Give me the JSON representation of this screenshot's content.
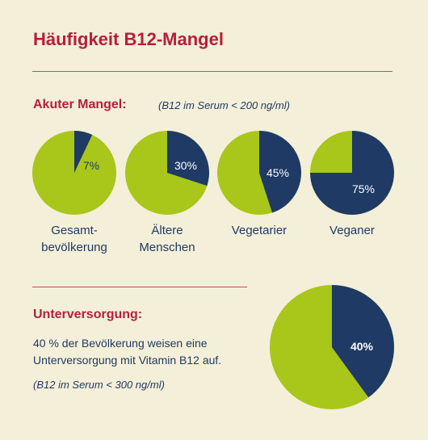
{
  "title": "Häufigkeit B12-Mangel",
  "colors": {
    "accent": "#b51f3b",
    "navy": "#1f3a64",
    "lime": "#a9c61a",
    "background": "#f4efd9"
  },
  "acute": {
    "heading": "Akuter Mangel:",
    "note": "(B12 im Serum < 200 ng/ml)"
  },
  "undersupply": {
    "heading": "Unterversorgung:",
    "description": "40 % der Bevölkerung weisen eine Unterversorgung mit Vitamin B12 auf.",
    "note": "(B12 im Serum < 300 ng/ml)"
  },
  "chart_data": [
    {
      "type": "pie",
      "category": "Gesamt-\nbevölkerung",
      "value": 7,
      "label": "7%"
    },
    {
      "type": "pie",
      "category": "Ältere\nMenschen",
      "value": 30,
      "label": "30%"
    },
    {
      "type": "pie",
      "category": "Vegetarier",
      "value": 45,
      "label": "45%"
    },
    {
      "type": "pie",
      "category": "Veganer",
      "value": 75,
      "label": "75%"
    },
    {
      "type": "pie",
      "category": "",
      "value": 40,
      "label": "40%"
    }
  ]
}
